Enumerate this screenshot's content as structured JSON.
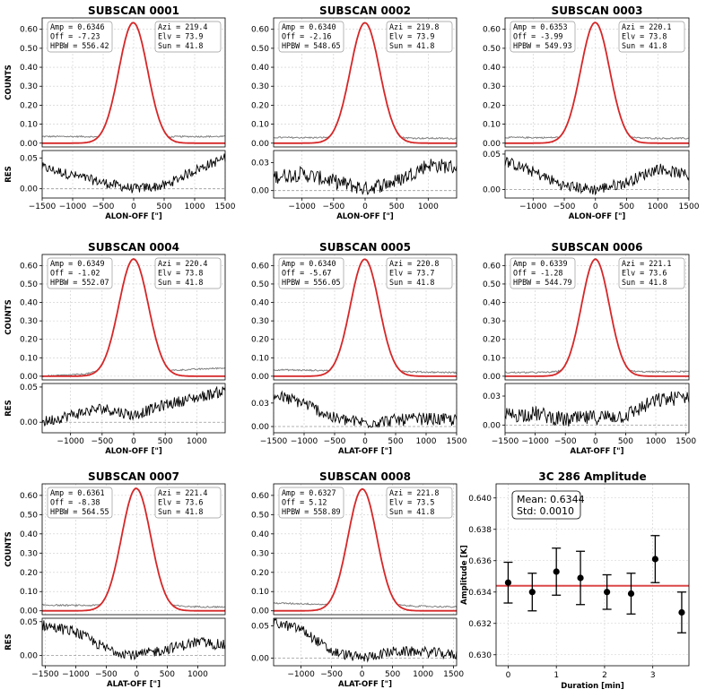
{
  "colors": {
    "model": "#d62728",
    "data": "#7f7f7f",
    "residual": "#000000",
    "zero_line": "#999999",
    "grid": "#cccccc"
  },
  "chart_data": [
    {
      "type": "line",
      "title": "SUBSCAN 0001",
      "ylabel": "COUNTS",
      "res_label": "RES",
      "xlabel": "ALON-OFF [\"]",
      "xlim": [
        -1500,
        1500
      ],
      "xticks": [
        -1500,
        -1000,
        -500,
        0,
        500,
        1000,
        1500
      ],
      "ylim": [
        -0.02,
        0.66
      ],
      "yticks": [
        0.0,
        0.1,
        0.2,
        0.3,
        0.4,
        0.5,
        0.6
      ],
      "res_ylim": [
        -0.015,
        0.062
      ],
      "res_yticks": [
        0.0,
        0.05
      ],
      "info_left": [
        "Amp  = 0.6346",
        "Off  = -7.23",
        "HPBW = 556.42"
      ],
      "info_right": [
        "Azi  = 219.4",
        "Elv  = 73.9",
        "Sun  = 41.8"
      ],
      "fit": {
        "amp": 0.6346,
        "offset": -7.23,
        "hpbw": 556.42
      },
      "data_baseline": {
        "left": 0.035,
        "right": 0.035
      },
      "residual_trend": {
        "x": [
          -1500,
          -1000,
          -500,
          0,
          500,
          1000,
          1500
        ],
        "y": [
          0.035,
          0.022,
          0.01,
          0.0,
          0.005,
          0.03,
          0.05
        ]
      }
    },
    {
      "type": "line",
      "title": "SUBSCAN 0002",
      "ylabel": "",
      "res_label": "",
      "xlabel": "ALON-OFF [\"]",
      "xlim": [
        -1450,
        1450
      ],
      "xticks": [
        -1000,
        -500,
        0,
        500,
        1000
      ],
      "ylim": [
        -0.02,
        0.66
      ],
      "yticks": [
        0.0,
        0.1,
        0.2,
        0.3,
        0.4,
        0.5,
        0.6
      ],
      "res_ylim": [
        -0.008,
        0.043
      ],
      "res_yticks": [
        0.0,
        0.03
      ],
      "info_left": [
        "Amp  = 0.6340",
        "Off  = -2.16",
        "HPBW = 548.65"
      ],
      "info_right": [
        "Azi  = 219.8",
        "Elv  = 73.9",
        "Sun  = 41.8"
      ],
      "fit": {
        "amp": 0.634,
        "offset": -2.16,
        "hpbw": 548.65
      },
      "data_baseline": {
        "left": 0.03,
        "right": 0.025
      },
      "residual_trend": {
        "x": [
          -1450,
          -1000,
          -500,
          0,
          500,
          1000,
          1450
        ],
        "y": [
          0.015,
          0.018,
          0.01,
          0.002,
          0.01,
          0.028,
          0.025
        ]
      }
    },
    {
      "type": "line",
      "title": "SUBSCAN 0003",
      "ylabel": "",
      "res_label": "",
      "xlabel": "ALON-OFF [\"]",
      "xlim": [
        -1450,
        1500
      ],
      "xticks": [
        -1000,
        -500,
        0,
        500,
        1000,
        1500
      ],
      "ylim": [
        -0.02,
        0.66
      ],
      "yticks": [
        0.0,
        0.1,
        0.2,
        0.3,
        0.4,
        0.5,
        0.6
      ],
      "res_ylim": [
        -0.012,
        0.055
      ],
      "res_yticks": [
        0.0,
        0.05
      ],
      "info_left": [
        "Amp  = 0.6353",
        "Off  = -3.99",
        "HPBW = 549.93"
      ],
      "info_right": [
        "Azi  = 220.1",
        "Elv  = 73.8",
        "Sun  = 41.8"
      ],
      "fit": {
        "amp": 0.6353,
        "offset": -3.99,
        "hpbw": 549.93
      },
      "data_baseline": {
        "left": 0.03,
        "right": 0.025
      },
      "residual_trend": {
        "x": [
          -1450,
          -1000,
          -500,
          0,
          500,
          1000,
          1500
        ],
        "y": [
          0.04,
          0.025,
          0.005,
          0.0,
          0.01,
          0.03,
          0.02
        ]
      }
    },
    {
      "type": "line",
      "title": "SUBSCAN 0004",
      "ylabel": "COUNTS",
      "res_label": "RES",
      "xlabel": "ALON-OFF [\"]",
      "xlim": [
        -1450,
        1450
      ],
      "xticks": [
        -1000,
        -500,
        0,
        500,
        1000
      ],
      "ylim": [
        -0.02,
        0.66
      ],
      "yticks": [
        0.0,
        0.1,
        0.2,
        0.3,
        0.4,
        0.5,
        0.6
      ],
      "res_ylim": [
        -0.015,
        0.055
      ],
      "res_yticks": [
        0.0,
        0.05
      ],
      "info_left": [
        "Amp  = 0.6349",
        "Off  = -1.02",
        "HPBW = 552.07"
      ],
      "info_right": [
        "Azi  = 220.4",
        "Elv  = 73.8",
        "Sun  = 41.8"
      ],
      "fit": {
        "amp": 0.6349,
        "offset": -1.02,
        "hpbw": 552.07
      },
      "data_baseline": {
        "left": 0.0,
        "right": 0.045
      },
      "residual_trend": {
        "x": [
          -1450,
          -1000,
          -500,
          0,
          500,
          1000,
          1450
        ],
        "y": [
          0.0,
          0.01,
          0.02,
          0.01,
          0.025,
          0.035,
          0.045
        ]
      }
    },
    {
      "type": "line",
      "title": "SUBSCAN 0005",
      "ylabel": "",
      "res_label": "",
      "xlabel": "ALAT-OFF [\"]",
      "xlim": [
        -1500,
        1500
      ],
      "xticks": [
        -1500,
        -1000,
        -500,
        0,
        500,
        1000,
        1500
      ],
      "ylim": [
        -0.02,
        0.66
      ],
      "yticks": [
        0.0,
        0.1,
        0.2,
        0.3,
        0.4,
        0.5,
        0.6
      ],
      "res_ylim": [
        -0.008,
        0.055
      ],
      "res_yticks": [
        0.0,
        0.03
      ],
      "info_left": [
        "Amp  = 0.6340",
        "Off  = -5.67",
        "HPBW = 556.05"
      ],
      "info_right": [
        "Azi  = 220.8",
        "Elv  = 73.7",
        "Sun  = 41.8"
      ],
      "fit": {
        "amp": 0.634,
        "offset": -5.67,
        "hpbw": 556.05
      },
      "data_baseline": {
        "left": 0.035,
        "right": 0.02
      },
      "residual_trend": {
        "x": [
          -1500,
          -1000,
          -500,
          0,
          500,
          1000,
          1500
        ],
        "y": [
          0.04,
          0.03,
          0.01,
          0.005,
          0.008,
          0.01,
          0.008
        ]
      }
    },
    {
      "type": "line",
      "title": "SUBSCAN 0006",
      "ylabel": "",
      "res_label": "",
      "xlabel": "ALAT-OFF [\"]",
      "xlim": [
        -1500,
        1550
      ],
      "xticks": [
        -1500,
        -1000,
        -500,
        0,
        500,
        1000,
        1500
      ],
      "ylim": [
        -0.02,
        0.66
      ],
      "yticks": [
        0.0,
        0.1,
        0.2,
        0.3,
        0.4,
        0.5,
        0.6
      ],
      "res_ylim": [
        -0.008,
        0.043
      ],
      "res_yticks": [
        0.0,
        0.03
      ],
      "info_left": [
        "Amp  = 0.6339",
        "Off  = -1.28",
        "HPBW = 544.79"
      ],
      "info_right": [
        "Azi  = 221.1",
        "Elv  = 73.6",
        "Sun  = 41.8"
      ],
      "fit": {
        "amp": 0.6339,
        "offset": -1.28,
        "hpbw": 544.79
      },
      "data_baseline": {
        "left": 0.02,
        "right": 0.025
      },
      "residual_trend": {
        "x": [
          -1500,
          -1000,
          -500,
          0,
          500,
          1000,
          1550
        ],
        "y": [
          0.01,
          0.012,
          0.005,
          0.008,
          0.01,
          0.025,
          0.03
        ]
      }
    },
    {
      "type": "line",
      "title": "SUBSCAN 0007",
      "ylabel": "COUNTS",
      "res_label": "RES",
      "xlabel": "ALAT-OFF [\"]",
      "xlim": [
        -1550,
        1450
      ],
      "xticks": [
        -1500,
        -1000,
        -500,
        0,
        500,
        1000
      ],
      "ylim": [
        -0.02,
        0.66
      ],
      "yticks": [
        0.0,
        0.1,
        0.2,
        0.3,
        0.4,
        0.5,
        0.6
      ],
      "res_ylim": [
        -0.015,
        0.055
      ],
      "res_yticks": [
        0.0,
        0.05
      ],
      "info_left": [
        "Amp  = 0.6361",
        "Off  = -8.38",
        "HPBW = 564.55"
      ],
      "info_right": [
        "Azi  = 221.4",
        "Elv  = 73.6",
        "Sun  = 41.8"
      ],
      "fit": {
        "amp": 0.6361,
        "offset": -8.38,
        "hpbw": 564.55
      },
      "data_baseline": {
        "left": 0.03,
        "right": 0.02
      },
      "residual_trend": {
        "x": [
          -1550,
          -1000,
          -500,
          0,
          500,
          1000,
          1450
        ],
        "y": [
          0.045,
          0.035,
          0.01,
          0.0,
          0.01,
          0.02,
          0.015
        ]
      }
    },
    {
      "type": "line",
      "title": "SUBSCAN 0008",
      "ylabel": "",
      "res_label": "",
      "xlabel": "ALAT-OFF [\"]",
      "xlim": [
        -1450,
        1550
      ],
      "xticks": [
        -1000,
        -500,
        0,
        500,
        1000,
        1500
      ],
      "ylim": [
        -0.02,
        0.66
      ],
      "yticks": [
        0.0,
        0.1,
        0.2,
        0.3,
        0.4,
        0.5,
        0.6
      ],
      "res_ylim": [
        -0.012,
        0.062
      ],
      "res_yticks": [
        0.0,
        0.05
      ],
      "info_left": [
        "Amp  = 0.6327",
        "Off  = 5.12",
        "HPBW = 558.89"
      ],
      "info_right": [
        "Azi  = 221.8",
        "Elv  = 73.5",
        "Sun  = 41.8"
      ],
      "fit": {
        "amp": 0.6327,
        "offset": 5.12,
        "hpbw": 558.89
      },
      "data_baseline": {
        "left": 0.04,
        "right": 0.02
      },
      "residual_trend": {
        "x": [
          -1450,
          -1000,
          -500,
          0,
          500,
          1000,
          1550
        ],
        "y": [
          0.055,
          0.045,
          0.01,
          0.0,
          0.01,
          0.01,
          0.005
        ]
      }
    },
    {
      "type": "scatter",
      "title": "3C 286  Amplitude",
      "xlabel": "Duration [min]",
      "ylabel": "Amplitude [K]",
      "xlim": [
        -0.25,
        3.75
      ],
      "xticks": [
        0,
        1,
        2,
        3
      ],
      "ylim": [
        0.6293,
        0.6409
      ],
      "yticks": [
        0.63,
        0.632,
        0.634,
        0.636,
        0.638,
        0.64
      ],
      "mean_line": 0.6344,
      "stats_text": [
        "Mean: 0.6344",
        "Std:  0.0010"
      ],
      "x": [
        0.0,
        0.5,
        1.0,
        1.5,
        2.05,
        2.55,
        3.05,
        3.6
      ],
      "y": [
        0.6346,
        0.634,
        0.6353,
        0.6349,
        0.634,
        0.6339,
        0.6361,
        0.6327
      ],
      "yerr": [
        0.0013,
        0.0012,
        0.0015,
        0.0017,
        0.0011,
        0.0013,
        0.0015,
        0.0013
      ]
    }
  ]
}
